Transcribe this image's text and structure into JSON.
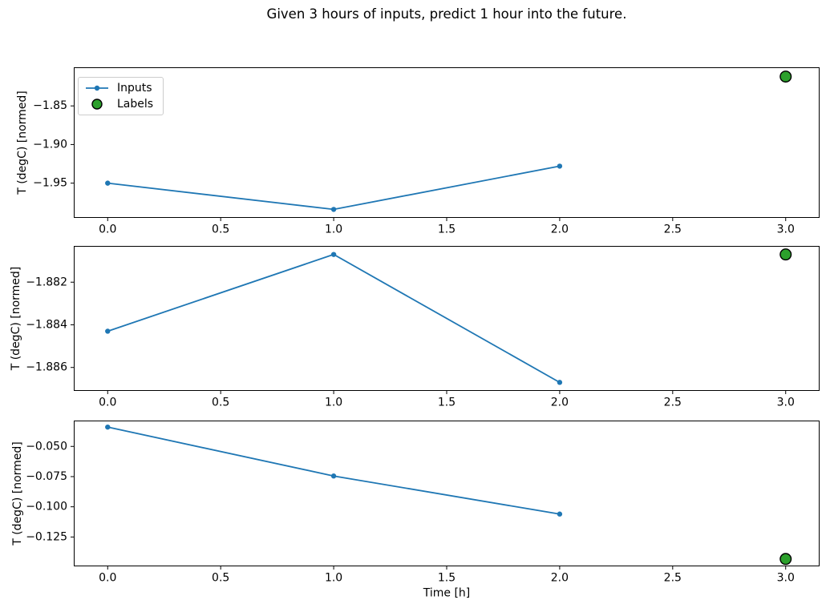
{
  "title": "Given 3 hours of inputs, predict 1 hour into the future.",
  "legend": {
    "inputs_label": "Inputs",
    "labels_label": "Labels"
  },
  "colors": {
    "inputs_line": "#1f77b4",
    "labels_fill": "#2ca02c",
    "labels_edge": "#000000",
    "axis": "#000000",
    "legend_border": "#cccccc"
  },
  "chart_data": [
    {
      "type": "line",
      "name": "subplot-top",
      "ylabel": "T (degC) [normed]",
      "xlabel": "",
      "xlim": [
        -0.15,
        3.15
      ],
      "ylim": [
        -1.995,
        -1.8
      ],
      "grid": false,
      "legend_position": "upper left",
      "x_ticks": [
        {
          "value": 0.0,
          "label": "0.0"
        },
        {
          "value": 0.5,
          "label": "0.5"
        },
        {
          "value": 1.0,
          "label": "1.0"
        },
        {
          "value": 1.5,
          "label": "1.5"
        },
        {
          "value": 2.0,
          "label": "2.0"
        },
        {
          "value": 2.5,
          "label": "2.5"
        },
        {
          "value": 3.0,
          "label": "3.0"
        }
      ],
      "y_ticks": [
        {
          "value": -1.85,
          "label": "−1.85"
        },
        {
          "value": -1.9,
          "label": "−1.90"
        },
        {
          "value": -1.95,
          "label": "−1.95"
        }
      ],
      "series": [
        {
          "name": "Inputs",
          "style": "line+marker",
          "x": [
            0,
            1,
            2
          ],
          "y": [
            -1.95,
            -1.984,
            -1.928
          ]
        },
        {
          "name": "Labels",
          "style": "scatter",
          "x": [
            3
          ],
          "y": [
            -1.812
          ]
        }
      ]
    },
    {
      "type": "line",
      "name": "subplot-middle",
      "ylabel": "T (degC) [normed]",
      "xlabel": "",
      "xlim": [
        -0.15,
        3.15
      ],
      "ylim": [
        -1.8871,
        -1.8803
      ],
      "grid": false,
      "legend_position": "none",
      "x_ticks": [
        {
          "value": 0.0,
          "label": "0.0"
        },
        {
          "value": 0.5,
          "label": "0.5"
        },
        {
          "value": 1.0,
          "label": "1.0"
        },
        {
          "value": 1.5,
          "label": "1.5"
        },
        {
          "value": 2.0,
          "label": "2.0"
        },
        {
          "value": 2.5,
          "label": "2.5"
        },
        {
          "value": 3.0,
          "label": "3.0"
        }
      ],
      "y_ticks": [
        {
          "value": -1.882,
          "label": "−1.882"
        },
        {
          "value": -1.884,
          "label": "−1.884"
        },
        {
          "value": -1.886,
          "label": "−1.886"
        }
      ],
      "series": [
        {
          "name": "Inputs",
          "style": "line+marker",
          "x": [
            0,
            1,
            2
          ],
          "y": [
            -1.8843,
            -1.8807,
            -1.8867
          ]
        },
        {
          "name": "Labels",
          "style": "scatter",
          "x": [
            3
          ],
          "y": [
            -1.8807
          ]
        }
      ]
    },
    {
      "type": "line",
      "name": "subplot-bottom",
      "ylabel": "T (degC) [normed]",
      "xlabel": "Time [h]",
      "xlim": [
        -0.15,
        3.15
      ],
      "ylim": [
        -0.1493,
        -0.0286
      ],
      "grid": false,
      "legend_position": "none",
      "x_ticks": [
        {
          "value": 0.0,
          "label": "0.0"
        },
        {
          "value": 0.5,
          "label": "0.5"
        },
        {
          "value": 1.0,
          "label": "1.0"
        },
        {
          "value": 1.5,
          "label": "1.5"
        },
        {
          "value": 2.0,
          "label": "2.0"
        },
        {
          "value": 2.5,
          "label": "2.5"
        },
        {
          "value": 3.0,
          "label": "3.0"
        }
      ],
      "y_ticks": [
        {
          "value": -0.05,
          "label": "−0.050"
        },
        {
          "value": -0.075,
          "label": "−0.075"
        },
        {
          "value": -0.1,
          "label": "−0.100"
        },
        {
          "value": -0.125,
          "label": "−0.125"
        }
      ],
      "series": [
        {
          "name": "Inputs",
          "style": "line+marker",
          "x": [
            0,
            1,
            2
          ],
          "y": [
            -0.034,
            -0.0745,
            -0.106
          ]
        },
        {
          "name": "Labels",
          "style": "scatter",
          "x": [
            3
          ],
          "y": [
            -0.1432
          ]
        }
      ]
    }
  ]
}
